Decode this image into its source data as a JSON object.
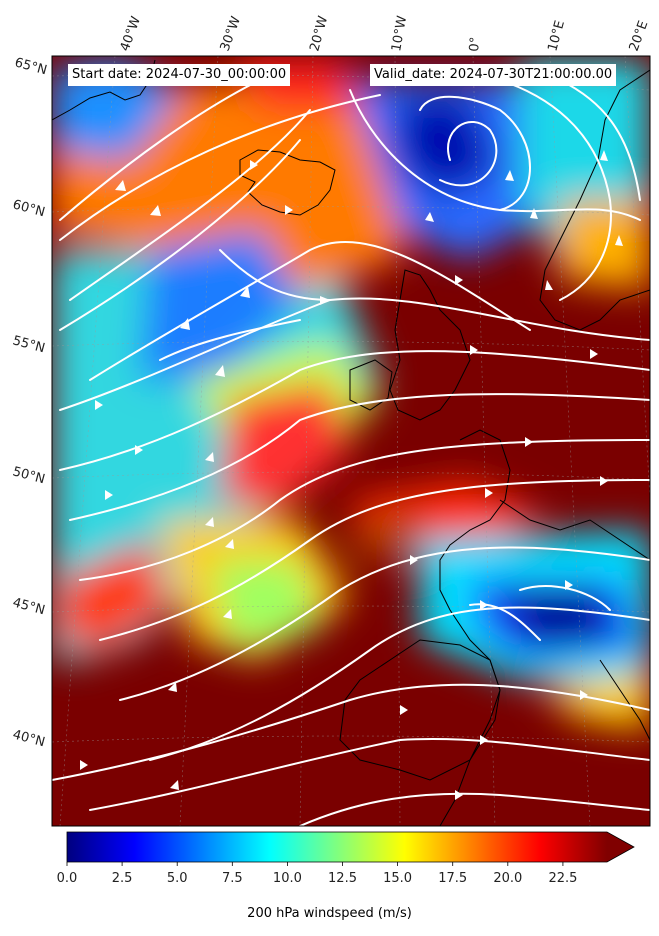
{
  "header": {
    "start_date": "Start date: 2024-07-30_00:00:00",
    "valid_date": "Valid_date: 2024-07-30T21:00:00.00"
  },
  "lon_labels": [
    "40°W",
    "30°W",
    "20°W",
    "10°W",
    "0°",
    "10°E",
    "20°E"
  ],
  "lat_labels": [
    "65°N",
    "60°N",
    "55°N",
    "50°N",
    "45°N",
    "40°N"
  ],
  "colorbar": {
    "label": "200 hPa windspeed (m/s)",
    "ticks": [
      "0.0",
      "2.5",
      "5.0",
      "7.5",
      "10.0",
      "12.5",
      "15.0",
      "17.5",
      "20.0",
      "22.5"
    ],
    "colormap": "jet",
    "extend": "max"
  },
  "colors": {
    "streamline": "#ffffff",
    "coastline": "#000000",
    "max_speed": "#800000",
    "min_speed": "#00007f"
  }
}
